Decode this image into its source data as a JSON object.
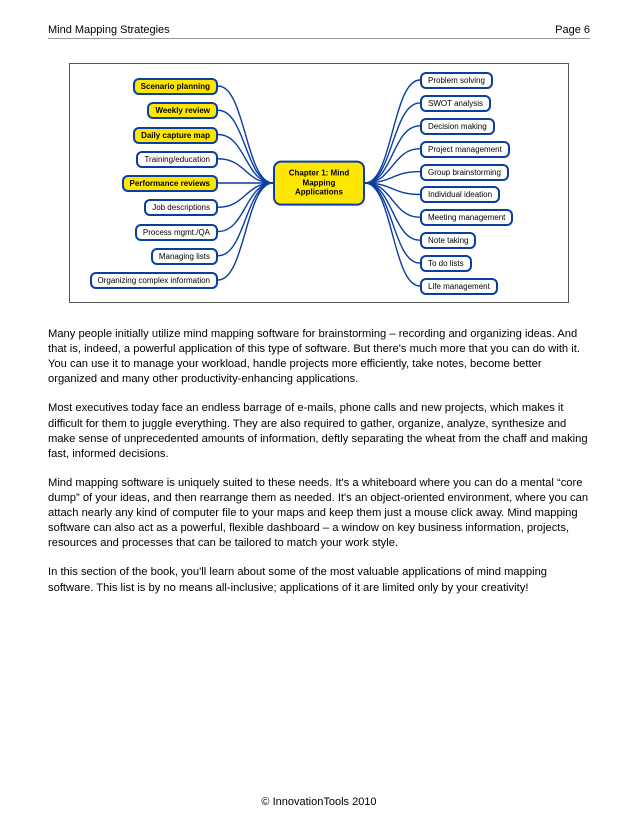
{
  "header": {
    "title": "Mind Mapping Strategies",
    "page_label": "Page 6"
  },
  "mindmap": {
    "center_label": "Chapter 1: Mind Mapping Applications",
    "center_color": "#ffe600",
    "node_border": "#0a3ea0",
    "connector_color": "#0a3ea0",
    "left_nodes": [
      {
        "label": "Scenario planning",
        "yellow": true
      },
      {
        "label": "Weekly review",
        "yellow": true
      },
      {
        "label": "Daily capture map",
        "yellow": true
      },
      {
        "label": "Training/education",
        "yellow": false
      },
      {
        "label": "Performance reviews",
        "yellow": true
      },
      {
        "label": "Job descriptions",
        "yellow": false
      },
      {
        "label": "Process mgmt./QA",
        "yellow": false
      },
      {
        "label": "Managing lists",
        "yellow": false
      },
      {
        "label": "Organizing complex information",
        "yellow": false
      }
    ],
    "right_nodes": [
      {
        "label": "Problem solving",
        "yellow": false
      },
      {
        "label": "SWOT analysis",
        "yellow": false
      },
      {
        "label": "Decision making",
        "yellow": false
      },
      {
        "label": "Project management",
        "yellow": false
      },
      {
        "label": "Group brainstorming",
        "yellow": false
      },
      {
        "label": "Individual ideation",
        "yellow": false
      },
      {
        "label": "Meeting management",
        "yellow": false
      },
      {
        "label": "Note taking",
        "yellow": false
      },
      {
        "label": "To do lists",
        "yellow": false
      },
      {
        "label": "Life management",
        "yellow": false
      }
    ]
  },
  "paragraphs": [
    "Many people initially utilize mind mapping software for brainstorming – recording and organizing ideas. And that is, indeed, a powerful application of this type of software. But there's much more that you can do with it. You can use it to manage your workload, handle projects more efficiently, take notes, become better organized and many other productivity-enhancing applications.",
    "Most executives today face an endless barrage of e-mails, phone calls and new projects, which makes it difficult for them to juggle everything. They are also required to gather, organize, analyze, synthesize and make sense of unprecedented amounts of information, deftly separating the wheat from the chaff and making fast, informed decisions.",
    "Mind mapping software is uniquely suited to these needs. It's a whiteboard where you can do a mental “core dump” of your ideas, and then rearrange them as needed. It's an object-oriented environment, where you can attach nearly any kind of computer file to your maps and keep them just a mouse click away. Mind mapping software can also act as a powerful, flexible dashboard – a window on key business information, projects, resources and processes that can be tailored to match your work style.",
    "In this section of the book, you'll learn about some of the most valuable applications of mind mapping software. This list is by no means all-inclusive; applications of it are limited only by your creativity!"
  ],
  "footer": "© InnovationTools 2010"
}
